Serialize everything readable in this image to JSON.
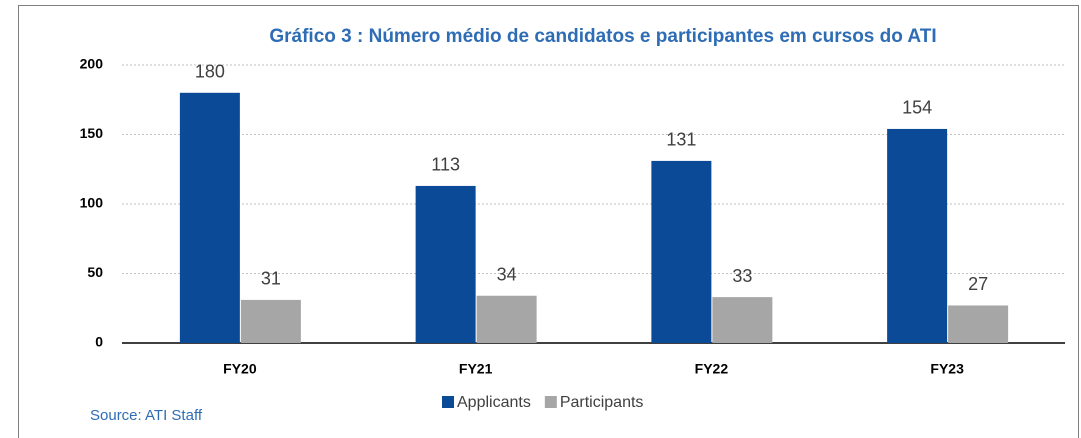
{
  "chart_data": {
    "type": "bar",
    "title": "Gráfico 3 : Número médio de candidatos e participantes em cursos do ATI",
    "source": "Source: ATI Staff",
    "categories": [
      "FY20",
      "FY21",
      "FY22",
      "FY23"
    ],
    "series": [
      {
        "name": "Applicants",
        "color": "#0b4a97",
        "values": [
          180,
          113,
          131,
          154
        ]
      },
      {
        "name": "Participants",
        "color": "#a6a6a6",
        "values": [
          31,
          34,
          33,
          27
        ]
      }
    ],
    "ylim": [
      0,
      200
    ],
    "yticks": [
      0,
      50,
      100,
      150,
      200
    ],
    "grid": true,
    "legend": "bottom"
  }
}
